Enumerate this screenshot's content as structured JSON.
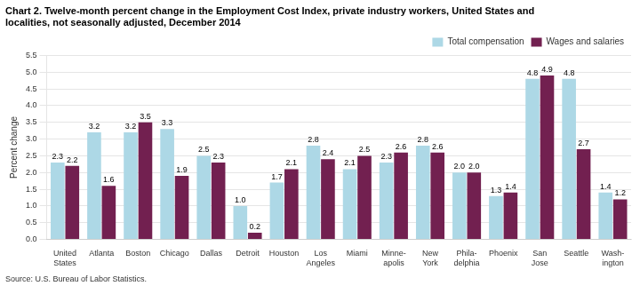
{
  "chart_data": {
    "type": "bar",
    "title": [
      "Chart 2. Twelve-month percent change in the Employment Cost Index, private industry workers, United States and",
      "localities, not seasonally adjusted, December 2014"
    ],
    "ylabel": "Percent change",
    "source": "Source: U.S. Bureau of Labor Statistics.",
    "categories": [
      "United\nStates",
      "Atlanta",
      "Boston",
      "Chicago",
      "Dallas",
      "Detroit",
      "Houston",
      "Los\nAngeles",
      "Miami",
      "Minne-\napolis",
      "New\nYork",
      "Phila-\ndelphia",
      "Phoenix",
      "San\nJose",
      "Seattle",
      "Wash-\nington"
    ],
    "series": [
      {
        "name": "Total compensation",
        "color": "#add8e6",
        "values": [
          2.3,
          3.2,
          3.2,
          3.3,
          2.5,
          1.0,
          1.7,
          2.8,
          2.1,
          2.3,
          2.8,
          2.0,
          1.3,
          4.8,
          4.8,
          1.4
        ],
        "value_labels": [
          "2.3",
          "3.2",
          "3.2",
          "3.3",
          "2.5",
          "1.0",
          "1.7",
          "2.8",
          "2.1",
          "2.3",
          "2.8",
          "2.0",
          "1.3",
          "4.8",
          "4.8",
          "1.4"
        ]
      },
      {
        "name": "Wages and salaries",
        "color": "#722050",
        "values": [
          2.2,
          1.6,
          3.5,
          1.9,
          2.3,
          0.2,
          2.1,
          2.4,
          2.5,
          2.6,
          2.6,
          2.0,
          1.4,
          4.9,
          2.7,
          1.2
        ],
        "value_labels": [
          "2.2",
          "1.6",
          "3.5",
          "1.9",
          "2.3",
          "0.2",
          "2.1",
          "2.4",
          "2.5",
          "2.6",
          "2.6",
          "2.0",
          "1.4",
          "4.9",
          "2.7",
          "1.2"
        ]
      }
    ],
    "ylim": [
      0,
      5.5
    ],
    "yticks": [
      {
        "value": 0,
        "label": "0.0"
      },
      0.5,
      {
        "value": 1,
        "label": "1.0"
      },
      1.5,
      {
        "value": 2,
        "label": "2.0"
      },
      2.5,
      {
        "value": 3,
        "label": "3.0"
      },
      3.5,
      {
        "value": 4,
        "label": "4.0"
      },
      4.5,
      {
        "value": 5,
        "label": "5.0"
      },
      5.5
    ],
    "grid": true,
    "legend": "upper right",
    "data_labels": true
  }
}
